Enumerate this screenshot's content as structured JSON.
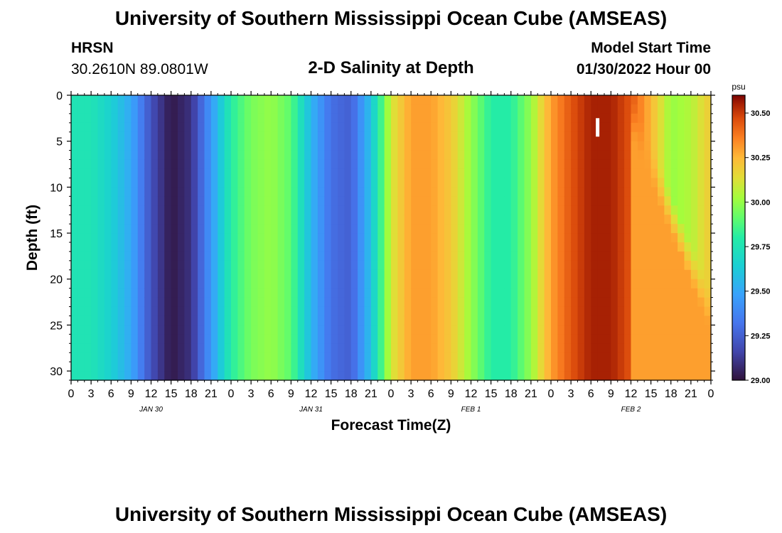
{
  "header": {
    "title": "University of Southern Mississippi Ocean Cube (AMSEAS)",
    "station": "HRSN",
    "coords": "30.2610N  89.0801W",
    "subtitle": "2-D Salinity at Depth",
    "start_label": "Model Start Time",
    "start_value": "01/30/2022 Hour 00"
  },
  "footer": {
    "title": "University of Southern Mississippi Ocean Cube (AMSEAS)"
  },
  "chart_data": {
    "type": "heatmap",
    "title": "2-D Salinity at Depth",
    "xlabel": "Forecast Time(Z)",
    "ylabel": "Depth (ft)",
    "x_range_hours": [
      0,
      96
    ],
    "y_range_ft": [
      0,
      31
    ],
    "y_ticks": [
      0,
      5,
      10,
      15,
      20,
      25,
      30
    ],
    "x_tick_labels": [
      "0",
      "3",
      "6",
      "9",
      "12",
      "15",
      "18",
      "21",
      "0",
      "3",
      "6",
      "9",
      "12",
      "15",
      "18",
      "21",
      "0",
      "3",
      "6",
      "9",
      "12",
      "15",
      "18",
      "21",
      "0",
      "3",
      "6",
      "9",
      "12",
      "15",
      "18",
      "21",
      "0"
    ],
    "date_labels": [
      {
        "hour": 12,
        "label": "JAN 30"
      },
      {
        "hour": 36,
        "label": "JAN 31"
      },
      {
        "hour": 60,
        "label": "FEB 1"
      },
      {
        "hour": 84,
        "label": "FEB 2"
      }
    ],
    "colorbar": {
      "unit": "psu",
      "min": 29.0,
      "max": 30.6,
      "ticks": [
        "29.00",
        "29.25",
        "29.50",
        "29.75",
        "30.00",
        "30.25",
        "30.50"
      ]
    },
    "surface_salinity_by_hour": [
      [
        0,
        29.75
      ],
      [
        3,
        29.75
      ],
      [
        6,
        29.65
      ],
      [
        9,
        29.5
      ],
      [
        12,
        29.2
      ],
      [
        15,
        29.02
      ],
      [
        18,
        29.1
      ],
      [
        21,
        29.45
      ],
      [
        24,
        29.8
      ],
      [
        27,
        29.95
      ],
      [
        30,
        30.0
      ],
      [
        33,
        29.9
      ],
      [
        36,
        29.55
      ],
      [
        39,
        29.3
      ],
      [
        42,
        29.25
      ],
      [
        45,
        29.6
      ],
      [
        48,
        30.1
      ],
      [
        51,
        30.3
      ],
      [
        54,
        30.3
      ],
      [
        57,
        30.2
      ],
      [
        60,
        30.0
      ],
      [
        63,
        29.8
      ],
      [
        66,
        29.8
      ],
      [
        69,
        30.0
      ],
      [
        72,
        30.3
      ],
      [
        75,
        30.45
      ],
      [
        78,
        30.55
      ],
      [
        81,
        30.55
      ],
      [
        84,
        30.45
      ],
      [
        87,
        30.25
      ],
      [
        90,
        30.0
      ],
      [
        93,
        30.05
      ],
      [
        96,
        30.2
      ]
    ],
    "late_period_deep_salinity": 30.3,
    "marker": {
      "hour": 79,
      "depth_ft": 3.5
    }
  }
}
